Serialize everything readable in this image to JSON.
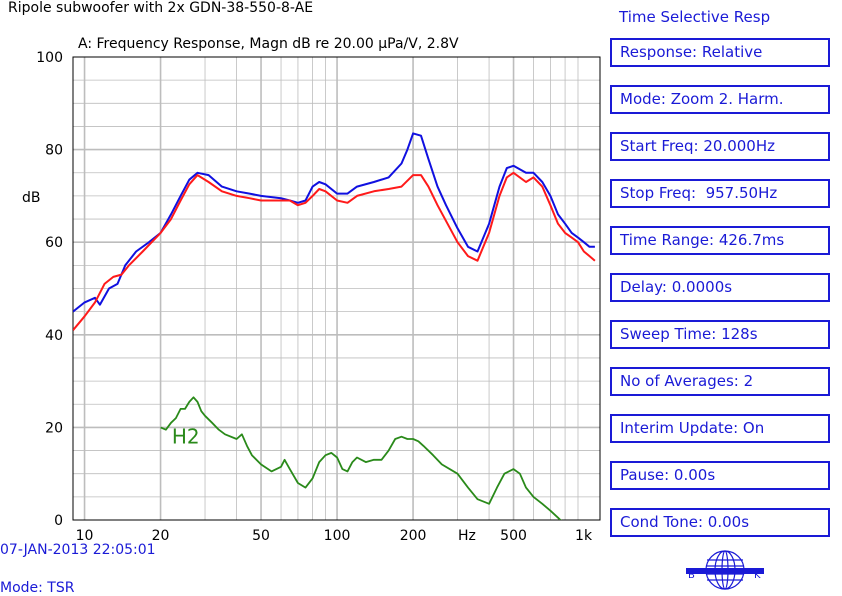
{
  "chart_title": "Ripole subwoofer with 2x GDN-38-550-8-AE",
  "panel": {
    "title": "Time Selective Resp",
    "items": [
      "Response: Relative",
      "Mode: Zoom 2. Harm.",
      "Start Freq: 20.000Hz",
      "Stop Freq:  957.50Hz",
      "Time Range: 426.7ms",
      "Delay: 0.0000s",
      "Sweep Time: 128s",
      "No of Averages: 2",
      "Interim Update: On",
      "Pause: 0.00s",
      "Cond Tone: 0.00s"
    ]
  },
  "footer": {
    "timestamp": "07-JAN-2013 22:05:01",
    "mode": "Mode: TSR"
  },
  "logo": {
    "left": "B",
    "right": "K"
  },
  "colors": {
    "accent": "#1a1ad6",
    "blue_series": "#1010e0",
    "red_series": "#ff1a1a",
    "green_series": "#2a8a1a",
    "grid": "#bdbdbd"
  },
  "chart_data": {
    "type": "line",
    "title": "A: Frequency Response, Magn dB re 20.00 µPa/V, 2.8V",
    "ylabel": "dB",
    "xlabel": "Hz",
    "xscale": "log",
    "xlim": [
      9,
      1100
    ],
    "ylim": [
      0,
      100
    ],
    "grid": true,
    "yticks": [
      0,
      20,
      40,
      60,
      80,
      100
    ],
    "xticks": [
      {
        "v": 10,
        "label": "10"
      },
      {
        "v": 20,
        "label": "20"
      },
      {
        "v": 50,
        "label": "50"
      },
      {
        "v": 100,
        "label": "100"
      },
      {
        "v": 200,
        "label": "200"
      },
      {
        "v": 500,
        "label": "500"
      },
      {
        "v": 1000,
        "label": "1k"
      }
    ],
    "annotations": [
      {
        "text": "H2",
        "x": 23,
        "y": 17
      }
    ],
    "series": [
      {
        "color": "blue",
        "points": [
          [
            9,
            45
          ],
          [
            10,
            47
          ],
          [
            11,
            48
          ],
          [
            11.5,
            46.5
          ],
          [
            12.5,
            50
          ],
          [
            13.5,
            51
          ],
          [
            14.5,
            55
          ],
          [
            16,
            58
          ],
          [
            18,
            60
          ],
          [
            20,
            62
          ],
          [
            22,
            66
          ],
          [
            24,
            70
          ],
          [
            26,
            73.5
          ],
          [
            28,
            75
          ],
          [
            31,
            74.5
          ],
          [
            35,
            72
          ],
          [
            40,
            71
          ],
          [
            45,
            70.5
          ],
          [
            50,
            70
          ],
          [
            60,
            69.5
          ],
          [
            65,
            69
          ],
          [
            70,
            68.5
          ],
          [
            75,
            69
          ],
          [
            80,
            72
          ],
          [
            85,
            73
          ],
          [
            90,
            72.5
          ],
          [
            100,
            70.5
          ],
          [
            110,
            70.5
          ],
          [
            120,
            72
          ],
          [
            140,
            73
          ],
          [
            160,
            74
          ],
          [
            180,
            77
          ],
          [
            190,
            80
          ],
          [
            200,
            83.5
          ],
          [
            215,
            83
          ],
          [
            230,
            78
          ],
          [
            250,
            72
          ],
          [
            270,
            68
          ],
          [
            300,
            63
          ],
          [
            330,
            59
          ],
          [
            360,
            58
          ],
          [
            400,
            64
          ],
          [
            440,
            72
          ],
          [
            470,
            76
          ],
          [
            500,
            76.5
          ],
          [
            560,
            75
          ],
          [
            600,
            75
          ],
          [
            650,
            73
          ],
          [
            700,
            70
          ],
          [
            750,
            66
          ],
          [
            800,
            64
          ],
          [
            850,
            62
          ],
          [
            900,
            61
          ],
          [
            950,
            60
          ],
          [
            1000,
            59
          ],
          [
            1050,
            59
          ]
        ]
      },
      {
        "color": "red",
        "points": [
          [
            9,
            41
          ],
          [
            10,
            44
          ],
          [
            11,
            47
          ],
          [
            12,
            51
          ],
          [
            13,
            52.5
          ],
          [
            14,
            53
          ],
          [
            15,
            55
          ],
          [
            17,
            58
          ],
          [
            20,
            62
          ],
          [
            22,
            65
          ],
          [
            24,
            69
          ],
          [
            26,
            72.5
          ],
          [
            28,
            74.5
          ],
          [
            31,
            73
          ],
          [
            35,
            71
          ],
          [
            40,
            70
          ],
          [
            45,
            69.5
          ],
          [
            50,
            69
          ],
          [
            60,
            69
          ],
          [
            65,
            69
          ],
          [
            70,
            68
          ],
          [
            75,
            68.5
          ],
          [
            80,
            70
          ],
          [
            85,
            71.5
          ],
          [
            90,
            71
          ],
          [
            100,
            69
          ],
          [
            110,
            68.5
          ],
          [
            120,
            70
          ],
          [
            140,
            71
          ],
          [
            160,
            71.5
          ],
          [
            180,
            72
          ],
          [
            200,
            74.5
          ],
          [
            215,
            74.5
          ],
          [
            230,
            72
          ],
          [
            250,
            68
          ],
          [
            280,
            63
          ],
          [
            300,
            60
          ],
          [
            330,
            57
          ],
          [
            360,
            56
          ],
          [
            400,
            62
          ],
          [
            440,
            70
          ],
          [
            470,
            74
          ],
          [
            500,
            75
          ],
          [
            560,
            73
          ],
          [
            600,
            74
          ],
          [
            650,
            72
          ],
          [
            700,
            68
          ],
          [
            750,
            64
          ],
          [
            800,
            62
          ],
          [
            850,
            61
          ],
          [
            900,
            60
          ],
          [
            950,
            58
          ],
          [
            1000,
            57
          ],
          [
            1050,
            56
          ]
        ]
      },
      {
        "name": "H2",
        "color": "green",
        "points": [
          [
            20,
            20
          ],
          [
            21,
            19.5
          ],
          [
            22,
            21
          ],
          [
            23,
            22
          ],
          [
            24,
            24
          ],
          [
            25,
            24
          ],
          [
            26,
            25.5
          ],
          [
            27,
            26.5
          ],
          [
            28,
            25.5
          ],
          [
            29,
            23.5
          ],
          [
            30,
            22.5
          ],
          [
            32,
            21
          ],
          [
            34,
            19.5
          ],
          [
            36,
            18.5
          ],
          [
            40,
            17.5
          ],
          [
            42,
            18.5
          ],
          [
            44,
            16
          ],
          [
            46,
            14
          ],
          [
            50,
            12
          ],
          [
            55,
            10.5
          ],
          [
            60,
            11.5
          ],
          [
            62,
            13
          ],
          [
            65,
            11
          ],
          [
            70,
            8
          ],
          [
            75,
            7
          ],
          [
            80,
            9
          ],
          [
            85,
            12.5
          ],
          [
            90,
            14
          ],
          [
            95,
            14.5
          ],
          [
            100,
            13.5
          ],
          [
            105,
            11
          ],
          [
            110,
            10.5
          ],
          [
            115,
            12.5
          ],
          [
            120,
            13.5
          ],
          [
            130,
            12.5
          ],
          [
            140,
            13
          ],
          [
            150,
            13
          ],
          [
            160,
            15
          ],
          [
            170,
            17.5
          ],
          [
            180,
            18
          ],
          [
            190,
            17.5
          ],
          [
            200,
            17.5
          ],
          [
            210,
            17
          ],
          [
            220,
            16
          ],
          [
            240,
            14
          ],
          [
            260,
            12
          ],
          [
            300,
            10
          ],
          [
            330,
            7
          ],
          [
            360,
            4.5
          ],
          [
            400,
            3.5
          ],
          [
            430,
            7
          ],
          [
            460,
            10
          ],
          [
            500,
            11
          ],
          [
            530,
            10
          ],
          [
            560,
            7
          ],
          [
            600,
            5
          ],
          [
            650,
            3.5
          ],
          [
            700,
            2
          ],
          [
            750,
            0.5
          ],
          [
            800,
            -1
          ]
        ]
      }
    ]
  }
}
